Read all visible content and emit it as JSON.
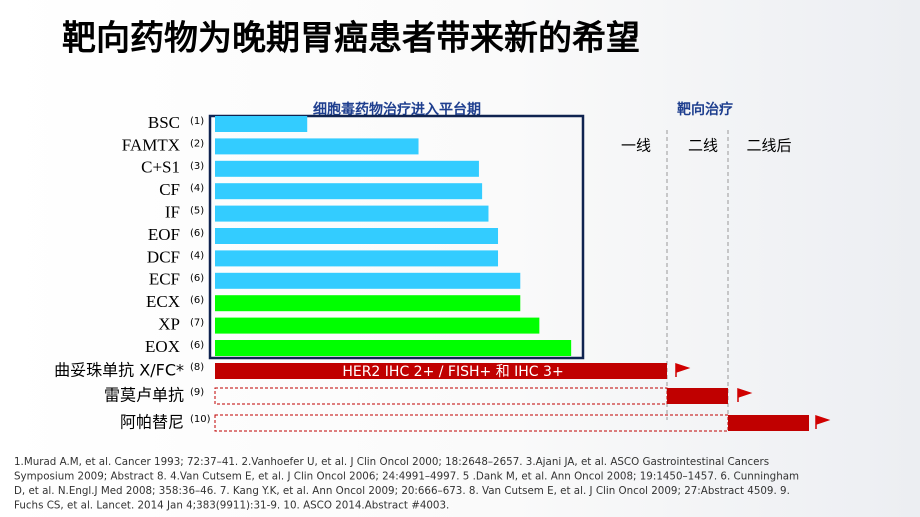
{
  "title": "靶向药物为晚期胃癌患者带来新的希望",
  "chart_data": {
    "type": "bar",
    "title": "细胞毒药物治疗进入平台期",
    "categories": [
      "BSC",
      "FAMTX",
      "C+S1",
      "CF",
      "IF",
      "EOF",
      "DCF",
      "ECF",
      "ECX",
      "XP",
      "EOX"
    ],
    "refs": [
      "(1)",
      "(2)",
      "(3)",
      "(4)",
      "(5)",
      "(6)",
      "(4)",
      "(6)",
      "(6)",
      "(7)",
      "(6)"
    ],
    "values": [
      2.9,
      6.4,
      8.3,
      8.4,
      8.6,
      8.9,
      8.9,
      9.6,
      9.6,
      10.2,
      11.2
    ],
    "colors": [
      "#33ccff",
      "#33ccff",
      "#33ccff",
      "#33ccff",
      "#33ccff",
      "#33ccff",
      "#33ccff",
      "#33ccff",
      "#00ff00",
      "#00ff00",
      "#00ff00"
    ]
  },
  "targeted": {
    "title": "靶向治疗",
    "lines": [
      "一线",
      "二线",
      "二线后"
    ],
    "rows": [
      {
        "label": "曲妥珠单抗 X/FC*",
        "ref": "(8)",
        "text": "HER2 IHC 2+ / FISH+ 和 IHC 3+"
      },
      {
        "label": "雷莫卢单抗",
        "ref": "(9)"
      },
      {
        "label": "阿帕替尼",
        "ref": "(10)"
      }
    ]
  },
  "references": [
    "1.Murad A.M, et al. Cancer 1993; 72:37–41.   2.Vanhoefer U, et al. J Clin Oncol 2000; 18:2648–2657.  3.Ajani JA, et al. ASCO Gastrointestinal Cancers",
    "Symposium 2009; Abstract 8.  4.Van Cutsem E, et al. J Clin Oncol 2006; 24:4991–4997. 5 .Dank M, et al. Ann Oncol 2008; 19:1450–1457.  6. Cunningham",
    "D, et al. N.Engl.J Med 2008; 358:36–46.  7. Kang Y.K, et al. Ann Oncol 2009; 20:666–673.  8. Van Cutsem E, et al. J Clin Oncol 2009; 27:Abstract 4509.  9.",
    "Fuchs CS, et al. Lancet. 2014 Jan 4;383(9911):31-9.   10. ASCO 2014.Abstract #4003."
  ]
}
